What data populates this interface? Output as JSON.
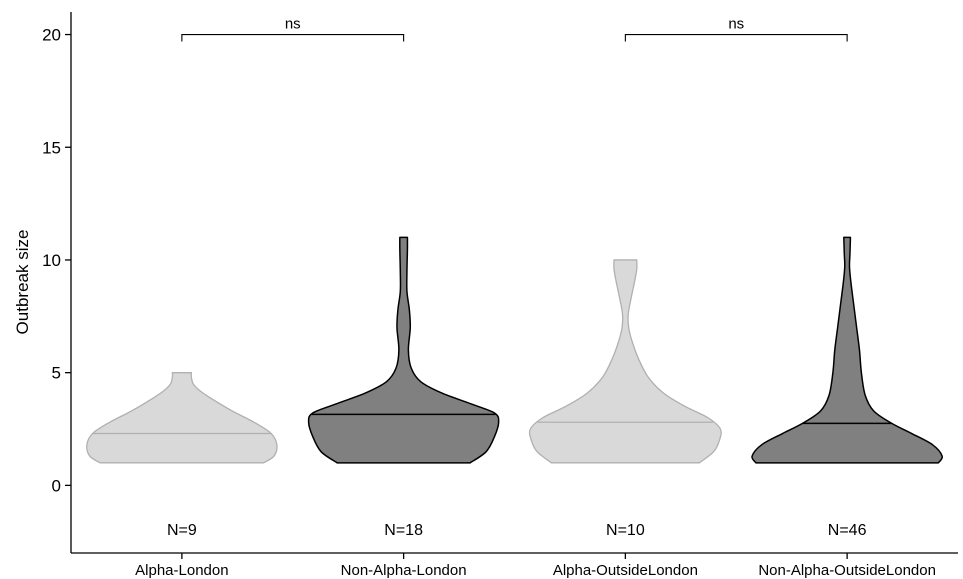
{
  "chart_data": {
    "type": "violin",
    "title": "",
    "xlabel": "",
    "ylabel": "Outbreak size",
    "ylim": [
      -3,
      21
    ],
    "yticks": [
      0,
      5,
      10,
      15,
      20
    ],
    "grid": false,
    "legend": "none",
    "categories": [
      "Alpha-London",
      "Non-Alpha-London",
      "Alpha-OutsideLondon",
      "Non-Alpha-OutsideLondon"
    ],
    "series": [
      {
        "category": "Alpha-London",
        "n_label": "N=9",
        "fill": "#d9d9d9",
        "stroke": "#b0b0b0",
        "median": 2.3,
        "min": 1,
        "max": 5,
        "profile": [
          [
            1,
            0.86
          ],
          [
            1.3,
            0.97
          ],
          [
            1.8,
            1.0
          ],
          [
            2.3,
            0.94
          ],
          [
            2.8,
            0.76
          ],
          [
            3.3,
            0.53
          ],
          [
            3.8,
            0.33
          ],
          [
            4.2,
            0.19
          ],
          [
            4.5,
            0.12
          ],
          [
            4.8,
            0.1
          ],
          [
            5,
            0.1
          ]
        ]
      },
      {
        "category": "Non-Alpha-London",
        "n_label": "N=18",
        "fill": "#808080",
        "stroke": "#000000",
        "median": 3.15,
        "min": 1,
        "max": 11,
        "profile": [
          [
            1,
            0.7
          ],
          [
            1.5,
            0.87
          ],
          [
            2.2,
            0.96
          ],
          [
            2.8,
            1.0
          ],
          [
            3.2,
            0.96
          ],
          [
            3.6,
            0.72
          ],
          [
            4.1,
            0.4
          ],
          [
            4.6,
            0.18
          ],
          [
            5.2,
            0.08
          ],
          [
            6.0,
            0.05
          ],
          [
            7.0,
            0.07
          ],
          [
            7.8,
            0.06
          ],
          [
            8.6,
            0.035
          ],
          [
            9.5,
            0.035
          ],
          [
            10.5,
            0.04
          ],
          [
            11,
            0.04
          ]
        ]
      },
      {
        "category": "Alpha-OutsideLondon",
        "n_label": "N=10",
        "fill": "#d9d9d9",
        "stroke": "#b0b0b0",
        "median": 2.8,
        "min": 1,
        "max": 10,
        "profile": [
          [
            1,
            0.78
          ],
          [
            1.5,
            0.93
          ],
          [
            2.0,
            0.99
          ],
          [
            2.5,
            1.0
          ],
          [
            3.0,
            0.87
          ],
          [
            3.5,
            0.63
          ],
          [
            4.1,
            0.4
          ],
          [
            4.8,
            0.24
          ],
          [
            5.6,
            0.14
          ],
          [
            6.4,
            0.07
          ],
          [
            7.0,
            0.035
          ],
          [
            7.6,
            0.03
          ],
          [
            8.4,
            0.065
          ],
          [
            9.1,
            0.1
          ],
          [
            9.6,
            0.12
          ],
          [
            10,
            0.12
          ]
        ]
      },
      {
        "category": "Non-Alpha-OutsideLondon",
        "n_label": "N=46",
        "fill": "#808080",
        "stroke": "#000000",
        "median": 2.75,
        "min": 1,
        "max": 11,
        "profile": [
          [
            1,
            0.96
          ],
          [
            1.3,
            1.0
          ],
          [
            1.8,
            0.9
          ],
          [
            2.3,
            0.68
          ],
          [
            2.75,
            0.47
          ],
          [
            3.3,
            0.28
          ],
          [
            4.0,
            0.19
          ],
          [
            5.0,
            0.15
          ],
          [
            6.0,
            0.13
          ],
          [
            7.0,
            0.1
          ],
          [
            8.0,
            0.07
          ],
          [
            9.0,
            0.04
          ],
          [
            9.7,
            0.025
          ],
          [
            10.3,
            0.03
          ],
          [
            11,
            0.035
          ]
        ]
      }
    ],
    "comparisons": [
      {
        "between": [
          "Alpha-London",
          "Non-Alpha-London"
        ],
        "label": "ns",
        "y": 20
      },
      {
        "between": [
          "Alpha-OutsideLondon",
          "Non-Alpha-OutsideLondon"
        ],
        "label": "ns",
        "y": 20
      }
    ]
  }
}
